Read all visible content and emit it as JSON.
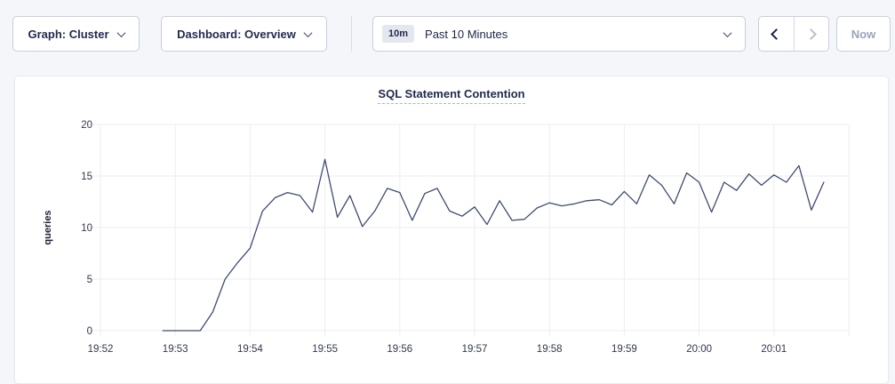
{
  "toolbar": {
    "graph_dropdown": {
      "label": "Graph: Cluster"
    },
    "dashboard_dropdown": {
      "label": "Dashboard: Overview"
    },
    "time_range": {
      "badge": "10m",
      "label": "Past 10 Minutes"
    },
    "now_button": {
      "label": "Now",
      "enabled": false
    },
    "prev_enabled": true,
    "next_enabled": false
  },
  "icons": {
    "chevron_down": "css-chevron-down",
    "chevron_left": "css-chevron-left",
    "chevron_right": "css-chevron-right"
  },
  "colors": {
    "page_bg": "#f4f6fa",
    "card_bg": "#ffffff",
    "line": "#3f4c6f",
    "grid": "#eceef3",
    "tick_text": "#33384a",
    "navy_text": "#242a50",
    "title_text": "#1f2a4d"
  },
  "chart_data": {
    "type": "line",
    "title": "SQL Statement Contention",
    "ylabel": "queries",
    "xlabel": "",
    "ylim": [
      0,
      20
    ],
    "yticks": [
      0,
      5,
      10,
      15,
      20
    ],
    "xticks": [
      "19:52",
      "19:53",
      "19:54",
      "19:55",
      "19:56",
      "19:57",
      "19:58",
      "19:59",
      "20:00",
      "20:01"
    ],
    "grid": true,
    "legend_position": "none",
    "series": [
      {
        "name": "queries",
        "color": "#3f4c6f",
        "x_start": "19:52:50",
        "interval_seconds": 10,
        "values": [
          0,
          0,
          0,
          0,
          1.8,
          5,
          6.6,
          8,
          11.6,
          12.9,
          13.4,
          13.1,
          11.5,
          16.6,
          11,
          13.1,
          10.1,
          11.6,
          13.8,
          13.4,
          10.7,
          13.3,
          13.8,
          11.6,
          11.1,
          12,
          10.3,
          12.6,
          10.7,
          10.8,
          11.9,
          12.4,
          12.1,
          12.3,
          12.6,
          12.7,
          12.2,
          13.5,
          12.3,
          15.1,
          14.1,
          12.3,
          15.3,
          14.4,
          11.5,
          14.4,
          13.6,
          15.2,
          14.1,
          15.1,
          14.4,
          16,
          11.7,
          14.4
        ]
      }
    ]
  }
}
